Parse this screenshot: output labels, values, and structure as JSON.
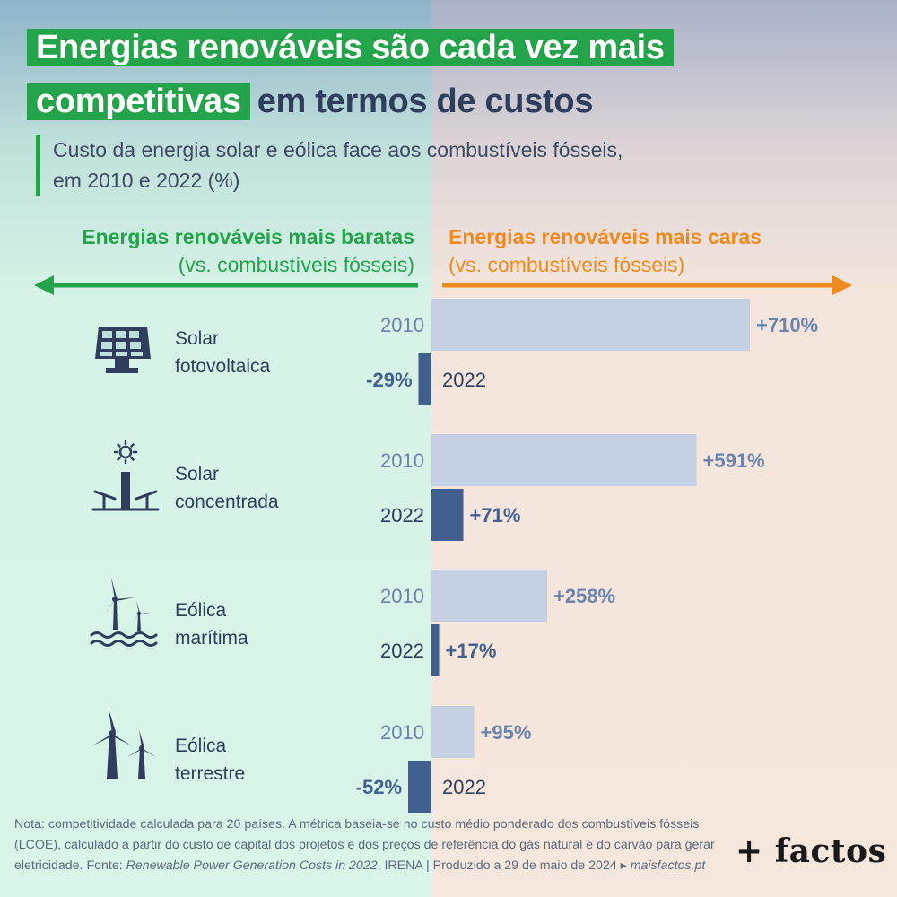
{
  "title": {
    "line1": "Energias renováveis são cada vez mais",
    "line2_highlight": "competitivas",
    "line2_rest": "em termos de custos"
  },
  "subtitle": "Custo da energia solar e eólica face aos combustíveis fósseis,\nem 2010 e 2022 (%)",
  "sides": {
    "left": {
      "heading": "Energias renováveis mais baratas",
      "sub": "(vs. combustíveis fósseis)",
      "color": "#23a34a"
    },
    "right": {
      "heading": "Energias renováveis mais caras",
      "sub": "(vs. combustíveis fósseis)",
      "color": "#ef8a1f"
    }
  },
  "colors": {
    "bar_2010": "#c5d0e3",
    "bar_2022": "#41608f",
    "label_2010": "#6b84ad",
    "label_2022": "#41608f"
  },
  "technologies": [
    {
      "label": "Solar\nfotovoltaica",
      "icon": "solar-panel-icon"
    },
    {
      "label": "Solar\nconcentrada",
      "icon": "concentrated-solar-icon"
    },
    {
      "label": "Eólica\nmarítima",
      "icon": "offshore-wind-icon"
    },
    {
      "label": "Eólica\nterrestre",
      "icon": "onshore-wind-icon"
    }
  ],
  "chart_data": {
    "type": "bar",
    "orientation": "horizontal",
    "categories": [
      "Solar fotovoltaica",
      "Solar concentrada",
      "Eólica marítima",
      "Eólica terrestre"
    ],
    "series": [
      {
        "name": "2010",
        "values": [
          710,
          591,
          258,
          95
        ],
        "labels": [
          "+710%",
          "+591%",
          "+258%",
          "+95%"
        ]
      },
      {
        "name": "2022",
        "values": [
          -29,
          71,
          17,
          -52
        ],
        "labels": [
          "-29%",
          "+71%",
          "+17%",
          "-52%"
        ]
      }
    ],
    "unit": "%",
    "title": "Custo da energia solar e eólica face aos combustíveis fósseis, em 2010 e 2022 (%)"
  },
  "note": {
    "text1": "Nota: competitividade calculada para 20 países. A métrica baseia-se no custo médio ponderado dos combustíveis fósseis (LCOE), calculado a partir do custo de capital dos projetos e dos preços de referência do gás natural e do carvão para gerar eletricidade. Fonte: ",
    "source": "Renewable Power Generation Costs in 2022",
    "text2": ", IRENA | Produzido a 29 de maio de 2024 ▸ ",
    "site": "maisfactos.pt"
  },
  "logo": "+ factos"
}
